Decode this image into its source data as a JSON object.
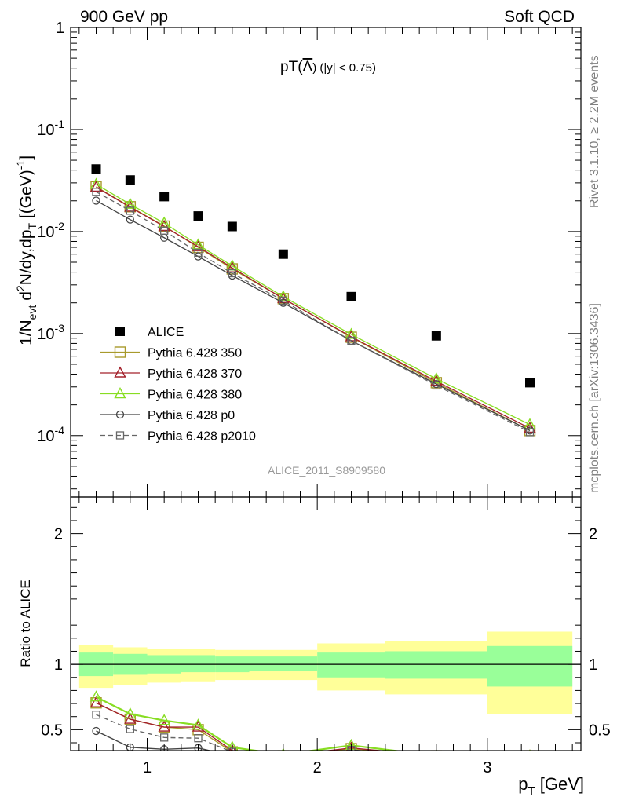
{
  "header": {
    "left": "900 GeV pp",
    "right": "Soft QCD"
  },
  "side_labels": {
    "rivet": "Rivet 3.1.10, ≥ 2.2M events",
    "mcplots": "mcplots.cern.ch [arXiv:1306.3436]"
  },
  "colors": {
    "ALICE": "#000000",
    "Pythia 6.428 350": "#a89a2c",
    "Pythia 6.428 370": "#a3202a",
    "Pythia 6.428 380": "#88dd22",
    "Pythia 6.428 p0": "#444444",
    "Pythia 6.428 p2010": "#666666",
    "band_inner": "#99ff99",
    "band_outer": "#ffff99"
  },
  "chart_data": [
    {
      "type": "scatter",
      "panel": "main",
      "title": "pT(Λ̄) (|y| < 0.75)",
      "title_parts": {
        "pre": "pT(",
        "sym": "Λ",
        "post": ") (|y| < 0.75)"
      },
      "ylabel": "1/N_evt d²N/dy,dp_T [(GeV)⁻¹]",
      "ylabel_parts": {
        "a": "1/N",
        "a_sub": "evt",
        "b": " d",
        "b_sup": "2",
        "c": "N/dy,dp",
        "c_sub": "T",
        "d": " [(GeV)",
        "d_sup": "-1",
        "e": "]"
      },
      "yscale": "log",
      "ylim": [
        2.5e-05,
        1
      ],
      "y_ticks": [
        {
          "v": 1,
          "m": "1",
          "e": ""
        },
        {
          "v": 0.1,
          "m": "10",
          "e": "-1"
        },
        {
          "v": 0.01,
          "m": "10",
          "e": "-2"
        },
        {
          "v": 0.001,
          "m": "10",
          "e": "-3"
        },
        {
          "v": 0.0001,
          "m": "10",
          "e": "-4"
        }
      ],
      "watermark": "ALICE_2011_S8909580",
      "legend_position": "bottom-left",
      "x": [
        0.7,
        0.9,
        1.1,
        1.3,
        1.5,
        1.8,
        2.2,
        2.7,
        3.25
      ],
      "series": [
        {
          "name": "ALICE",
          "marker": "filled-square",
          "values": [
            0.041,
            0.032,
            0.022,
            0.0142,
            0.0112,
            0.006,
            0.0023,
            0.00095,
            0.00033
          ]
        },
        {
          "name": "Pythia 6.428 350",
          "marker": "open-square",
          "line": "solid",
          "values": [
            0.0275,
            0.0175,
            0.0113,
            0.007,
            0.0043,
            0.0022,
            0.00092,
            0.00033,
            0.000112
          ]
        },
        {
          "name": "Pythia 6.428 370",
          "marker": "open-triangle",
          "line": "solid",
          "values": [
            0.0272,
            0.0173,
            0.0112,
            0.0071,
            0.0044,
            0.0022,
            0.00093,
            0.00034,
            0.000118
          ]
        },
        {
          "name": "Pythia 6.428 380",
          "marker": "open-triangle",
          "line": "solid",
          "values": [
            0.029,
            0.0185,
            0.0121,
            0.0074,
            0.0046,
            0.0023,
            0.00098,
            0.00036,
            0.000128
          ]
        },
        {
          "name": "Pythia 6.428 p0",
          "marker": "open-circle",
          "line": "solid",
          "values": [
            0.0201,
            0.0131,
            0.0087,
            0.0057,
            0.0037,
            0.002,
            0.00085,
            0.00032,
            0.000112
          ]
        },
        {
          "name": "Pythia 6.428 p2010",
          "marker": "open-square-small",
          "line": "dashed",
          "values": [
            0.0245,
            0.016,
            0.0102,
            0.0062,
            0.0039,
            0.0021,
            0.00085,
            0.00031,
            0.000108
          ]
        }
      ]
    },
    {
      "type": "line",
      "panel": "ratio",
      "ylabel": "Ratio to ALICE",
      "xlabel": "p_T [GeV]",
      "xlabel_parts": {
        "a": "p",
        "a_sub": "T",
        "b": " [GeV]"
      },
      "xlim": [
        0.55,
        3.55
      ],
      "ylim": [
        0.34,
        2.28
      ],
      "x_ticks": [
        1,
        2,
        3
      ],
      "y_ticks": [
        0.5,
        1,
        2
      ],
      "bands": {
        "edges": [
          0.6,
          0.8,
          1.0,
          1.2,
          1.4,
          1.6,
          2.0,
          2.4,
          3.0,
          3.5
        ],
        "inner_lo": [
          0.91,
          0.92,
          0.93,
          0.94,
          0.94,
          0.95,
          0.9,
          0.89,
          0.83
        ],
        "inner_hi": [
          1.09,
          1.08,
          1.07,
          1.07,
          1.06,
          1.06,
          1.09,
          1.1,
          1.14
        ],
        "outer_lo": [
          0.82,
          0.84,
          0.86,
          0.87,
          0.88,
          0.88,
          0.8,
          0.77,
          0.62
        ],
        "outer_hi": [
          1.15,
          1.13,
          1.12,
          1.12,
          1.11,
          1.11,
          1.16,
          1.18,
          1.25
        ]
      },
      "x": [
        0.7,
        0.9,
        1.1,
        1.3,
        1.5,
        1.8,
        2.2,
        2.7,
        3.25
      ],
      "series": [
        {
          "name": "Pythia 6.428 350",
          "values": [
            0.705,
            0.58,
            0.52,
            0.5,
            0.33,
            0.3,
            0.355,
            0.3,
            0.3
          ]
        },
        {
          "name": "Pythia 6.428 370",
          "values": [
            0.705,
            0.58,
            0.52,
            0.52,
            0.34,
            0.3,
            0.36,
            0.3,
            0.3
          ]
        },
        {
          "name": "Pythia 6.428 380",
          "values": [
            0.75,
            0.62,
            0.57,
            0.535,
            0.365,
            0.31,
            0.38,
            0.3,
            0.3
          ]
        },
        {
          "name": "Pythia 6.428 p0",
          "values": [
            0.49,
            0.365,
            0.35,
            0.36,
            0.3,
            0.3,
            0.3,
            0.3,
            0.3
          ]
        },
        {
          "name": "Pythia 6.428 p2010",
          "values": [
            0.615,
            0.505,
            0.44,
            0.435,
            0.33,
            0.3,
            0.345,
            0.3,
            0.3
          ]
        }
      ]
    }
  ]
}
